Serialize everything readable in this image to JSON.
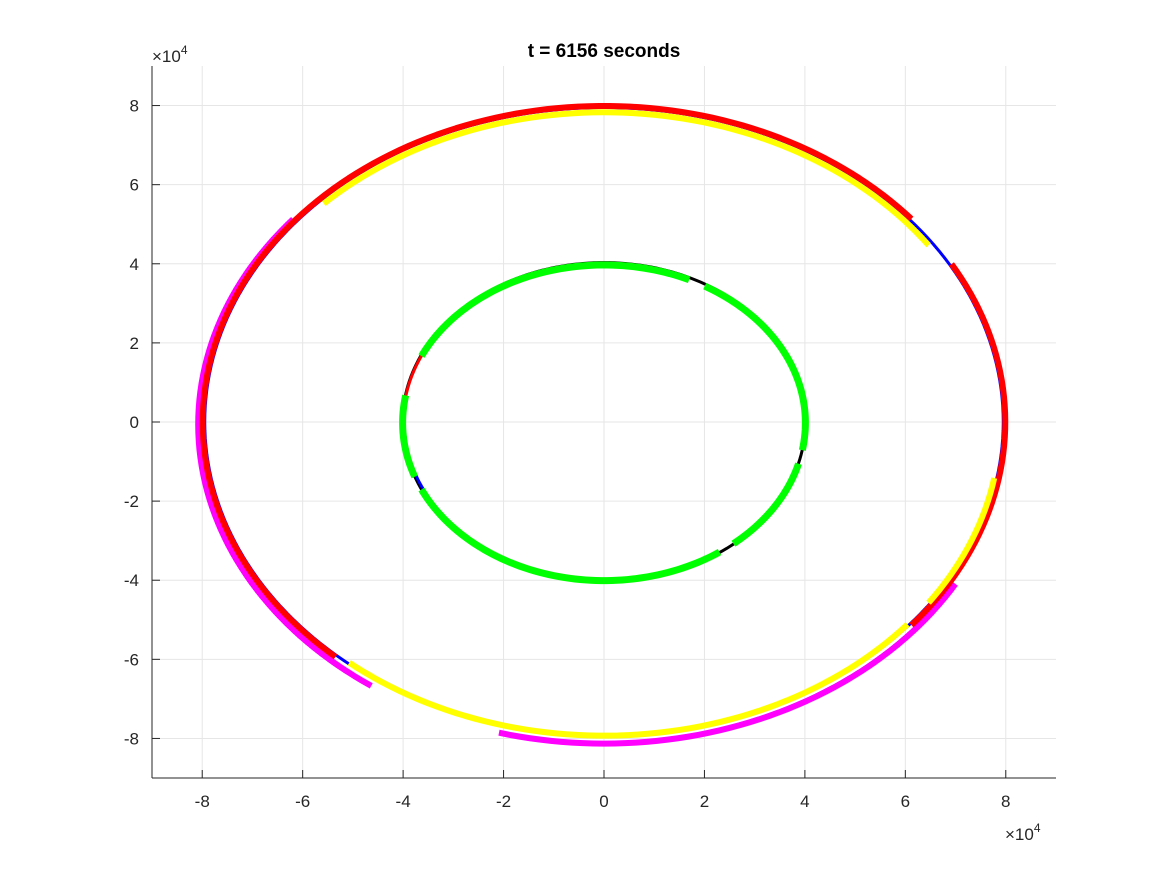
{
  "chart_data": {
    "type": "line",
    "title": "t = 6156 seconds",
    "xlabel": "",
    "ylabel": "",
    "xlim": [
      -90000,
      90000
    ],
    "ylim": [
      -90000,
      90000
    ],
    "x_ticks": [
      -80000,
      -60000,
      -40000,
      -20000,
      0,
      20000,
      40000,
      60000,
      80000
    ],
    "y_ticks": [
      -80000,
      -60000,
      -40000,
      -20000,
      0,
      20000,
      40000,
      60000,
      80000
    ],
    "x_tick_labels": [
      "-8",
      "-6",
      "-4",
      "-2",
      "0",
      "2",
      "4",
      "6",
      "8"
    ],
    "y_tick_labels": [
      "-8",
      "-6",
      "-4",
      "-2",
      "0",
      "2",
      "4",
      "6",
      "8"
    ],
    "x_exponent": {
      "base": "×10",
      "power": "4"
    },
    "y_exponent": {
      "base": "×10",
      "power": "4"
    },
    "grid": true,
    "series": [
      {
        "color": "#0000ff",
        "cx": 0,
        "cy": 0,
        "rx": 79500,
        "ry": 79500,
        "arcs": [
          [
            0,
            360
          ]
        ],
        "width": 3
      },
      {
        "color": "#ff00ff",
        "cx": 0,
        "cy": -600,
        "rx": 80800,
        "ry": 80700,
        "arcs": [
          [
            140,
            235
          ],
          [
            255,
            330
          ]
        ],
        "width": 6
      },
      {
        "color": "#ff0000",
        "cx": 0,
        "cy": 0,
        "rx": 79900,
        "ry": 79900,
        "arcs": [
          [
            -40,
            30
          ],
          [
            40,
            228
          ]
        ],
        "width": 6
      },
      {
        "color": "#ffff00",
        "cx": 0,
        "cy": -500,
        "rx": 78900,
        "ry": 78800,
        "arcs": [
          [
            35,
            135
          ],
          [
            230,
            320
          ],
          [
            325,
            350
          ]
        ],
        "width": 6
      },
      {
        "color": "#000000",
        "cx": 0,
        "cy": 0,
        "rx": 40100,
        "ry": 40300,
        "arcs": [
          [
            0,
            360
          ]
        ],
        "width": 3
      },
      {
        "color": "#ff0000",
        "cx": 0,
        "cy": 0,
        "rx": 40000,
        "ry": 40000,
        "arcs": [
          [
            120,
            180
          ]
        ],
        "width": 3
      },
      {
        "color": "#0000ff",
        "cx": 0,
        "cy": 0,
        "rx": 39800,
        "ry": 39800,
        "arcs": [
          [
            195,
            225
          ],
          [
            250,
            280
          ]
        ],
        "width": 3
      },
      {
        "color": "#00ff00",
        "cx": 0,
        "cy": -200,
        "rx": 40100,
        "ry": 39900,
        "arcs": [
          [
            350,
            60
          ],
          [
            65,
            155
          ],
          [
            170,
            200
          ],
          [
            205,
            305
          ],
          [
            310,
            345
          ]
        ],
        "width": 7
      }
    ]
  }
}
